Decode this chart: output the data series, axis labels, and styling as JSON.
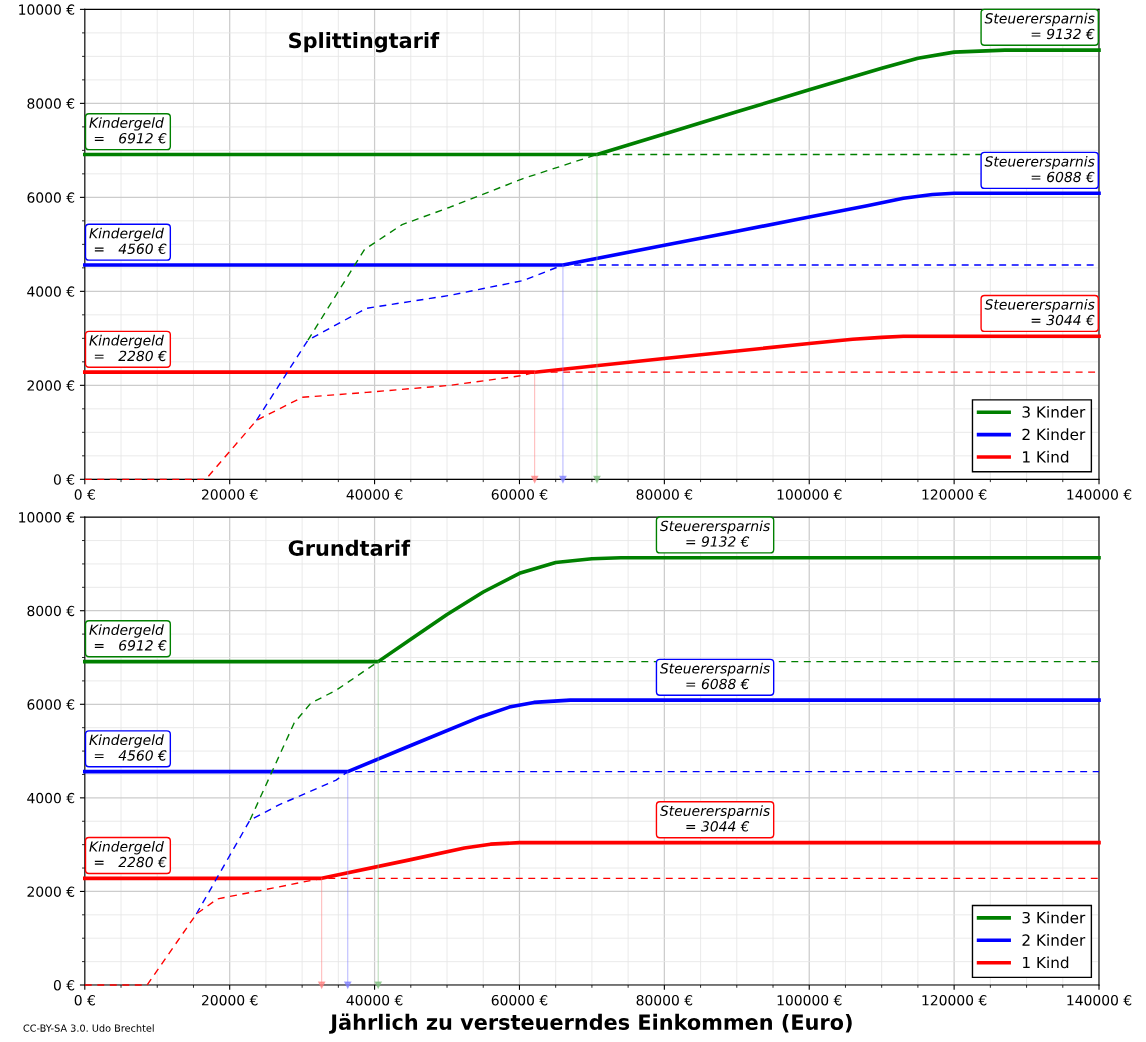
{
  "chart_data": [
    {
      "type": "line",
      "title": "Splittingtarif",
      "xlim": [
        0,
        140000
      ],
      "ylim": [
        0,
        10000
      ],
      "xticks": [
        {
          "value": 0,
          "label": "0 €"
        },
        {
          "value": 20000,
          "label": "20000 €"
        },
        {
          "value": 40000,
          "label": "40000 €"
        },
        {
          "value": 60000,
          "label": "60000 €"
        },
        {
          "value": 80000,
          "label": "80000 €"
        },
        {
          "value": 100000,
          "label": "100000 €"
        },
        {
          "value": 120000,
          "label": "120000 €"
        },
        {
          "value": 140000,
          "label": "140000 €"
        }
      ],
      "yticks": [
        {
          "value": 0,
          "label": "0 €"
        },
        {
          "value": 2000,
          "label": "2000 €"
        },
        {
          "value": 4000,
          "label": "4000 €"
        },
        {
          "value": 6000,
          "label": "6000 €"
        },
        {
          "value": 8000,
          "label": "8000 €"
        },
        {
          "value": 10000,
          "label": "10000 €"
        }
      ],
      "grid": true,
      "legend": "bottom right",
      "series": [
        {
          "name": "3 Kinder",
          "color": "#008000",
          "line_style": "solid",
          "x": [
            0,
            70700,
            80000,
            90000,
            100000,
            110000,
            115000,
            120000,
            127000,
            140000
          ],
          "values": [
            6912,
            6912,
            7350,
            7820,
            8290,
            8745,
            8960,
            9090,
            9132,
            9132
          ]
        },
        {
          "name": "2 Kinder",
          "color": "#0000ff",
          "line_style": "solid",
          "x": [
            0,
            66000,
            80000,
            90000,
            100000,
            108000,
            113000,
            117000,
            120000,
            140000
          ],
          "values": [
            4560,
            4560,
            4980,
            5280,
            5580,
            5820,
            5980,
            6060,
            6088,
            6088
          ]
        },
        {
          "name": "1 Kind",
          "color": "#ff0000",
          "line_style": "solid",
          "x": [
            0,
            62100,
            80000,
            100000,
            106000,
            110000,
            113000,
            140000
          ],
          "values": [
            2280,
            2280,
            2570,
            2890,
            2980,
            3020,
            3044,
            3044
          ]
        },
        {
          "color": "#008000",
          "line_style": "dashed",
          "x": [
            30800,
            38600,
            43800,
            50400,
            60500,
            70700,
            140000
          ],
          "values": [
            2960,
            4890,
            5420,
            5790,
            6400,
            6912,
            6912
          ]
        },
        {
          "color": "#0000ff",
          "line_style": "dashed",
          "x": [
            23700,
            30800,
            38900,
            50400,
            60500,
            66000,
            140000
          ],
          "values": [
            1255,
            2960,
            3640,
            3915,
            4230,
            4560,
            4560
          ]
        },
        {
          "color": "#ff0000",
          "line_style": "dashed",
          "x": [
            0,
            16700,
            23700,
            30000,
            38900,
            50400,
            60500,
            62100,
            140000
          ],
          "values": [
            0,
            0,
            1255,
            1745,
            1850,
            2000,
            2210,
            2280,
            2280
          ]
        },
        {
          "color": "#7fbf7f",
          "line_style": "solid",
          "marker": "triangle",
          "x": [
            70700,
            70700
          ],
          "values": [
            6912,
            0
          ]
        },
        {
          "color": "#8080ff",
          "line_style": "solid",
          "marker": "triangle",
          "x": [
            66000,
            66000
          ],
          "values": [
            4560,
            0
          ]
        },
        {
          "color": "#ff8080",
          "line_style": "solid",
          "marker": "triangle",
          "x": [
            62100,
            62100
          ],
          "values": [
            2280,
            0
          ]
        }
      ],
      "annotations": [
        {
          "text": "Kindergeld\n =   6912 €",
          "x": 0,
          "y": 6912
        },
        {
          "text": "Steuerersparnis\n = 9132 €",
          "x": 140000,
          "y": 9132
        },
        {
          "text": "Kindergeld\n =   4560 €",
          "x": 0,
          "y": 4560
        },
        {
          "text": "Steuerersparnis\n = 6088 €",
          "x": 140000,
          "y": 6088
        },
        {
          "text": "Kindergeld\n =   2280 €",
          "x": 0,
          "y": 2280
        },
        {
          "text": "Steuerersparnis\n = 3044 €",
          "x": 140000,
          "y": 3044
        }
      ]
    },
    {
      "type": "line",
      "title": "Grundtarif",
      "xlabel": "Jährlich zu versteuerndes Einkommen (Euro)",
      "xlim": [
        0,
        140000
      ],
      "ylim": [
        0,
        10000
      ],
      "xticks": [
        {
          "value": 0,
          "label": "0 €"
        },
        {
          "value": 20000,
          "label": "20000 €"
        },
        {
          "value": 40000,
          "label": "40000 €"
        },
        {
          "value": 60000,
          "label": "60000 €"
        },
        {
          "value": 80000,
          "label": "80000 €"
        },
        {
          "value": 100000,
          "label": "100000 €"
        },
        {
          "value": 120000,
          "label": "120000 €"
        },
        {
          "value": 140000,
          "label": "140000 €"
        }
      ],
      "yticks": [
        {
          "value": 0,
          "label": "0 €"
        },
        {
          "value": 2000,
          "label": "2000 €"
        },
        {
          "value": 4000,
          "label": "4000 €"
        },
        {
          "value": 6000,
          "label": "6000 €"
        },
        {
          "value": 8000,
          "label": "8000 €"
        },
        {
          "value": 10000,
          "label": "10000 €"
        }
      ],
      "grid": true,
      "legend": "bottom right",
      "series": [
        {
          "name": "3 Kinder",
          "color": "#008000",
          "line_style": "solid",
          "x": [
            0,
            40500,
            45000,
            50000,
            55000,
            60000,
            65000,
            70000,
            74000,
            140000
          ],
          "values": [
            6912,
            6912,
            7390,
            7920,
            8400,
            8800,
            9030,
            9110,
            9132,
            9132
          ]
        },
        {
          "name": "2 Kinder",
          "color": "#0000ff",
          "line_style": "solid",
          "x": [
            0,
            36300,
            45000,
            54600,
            58600,
            62000,
            67000,
            140000
          ],
          "values": [
            4560,
            4560,
            5120,
            5730,
            5940,
            6040,
            6088,
            6088
          ]
        },
        {
          "name": "1 Kind",
          "color": "#ff0000",
          "line_style": "solid",
          "x": [
            0,
            32700,
            45000,
            52400,
            56000,
            60000,
            140000
          ],
          "values": [
            2280,
            2280,
            2680,
            2930,
            3010,
            3044,
            3044
          ]
        },
        {
          "color": "#008000",
          "line_style": "dashed",
          "x": [
            22800,
            28900,
            31200,
            34700,
            40500,
            140000
          ],
          "values": [
            3525,
            5600,
            6025,
            6300,
            6912,
            6912
          ]
        },
        {
          "color": "#0000ff",
          "line_style": "dashed",
          "x": [
            15400,
            22800,
            26800,
            34700,
            36300,
            140000
          ],
          "values": [
            1517,
            3525,
            3850,
            4380,
            4560,
            4560
          ]
        },
        {
          "color": "#ff0000",
          "line_style": "dashed",
          "x": [
            0,
            8600,
            15400,
            18300,
            25900,
            32700,
            140000
          ],
          "values": [
            0,
            0,
            1517,
            1840,
            2070,
            2280,
            2280
          ]
        },
        {
          "color": "#7fbf7f",
          "line_style": "solid",
          "marker": "triangle",
          "x": [
            40500,
            40500
          ],
          "values": [
            6912,
            0
          ]
        },
        {
          "color": "#8080ff",
          "line_style": "solid",
          "marker": "triangle",
          "x": [
            36300,
            36300
          ],
          "values": [
            4560,
            0
          ]
        },
        {
          "color": "#ff8080",
          "line_style": "solid",
          "marker": "triangle",
          "x": [
            32700,
            32700
          ],
          "values": [
            2280,
            0
          ]
        }
      ],
      "annotations": [
        {
          "text": "Kindergeld\n =   6912 €",
          "x": 0,
          "y": 6912
        },
        {
          "text": "Steuerersparnis\n = 9132 €",
          "x": 87000,
          "y": 9132
        },
        {
          "text": "Kindergeld\n =   4560 €",
          "x": 0,
          "y": 4560
        },
        {
          "text": "Steuerersparnis\n = 6088 €",
          "x": 87000,
          "y": 6088
        },
        {
          "text": "Kindergeld\n =   2280 €",
          "x": 0,
          "y": 2280
        },
        {
          "text": "Steuerersparnis\n = 3044 €",
          "x": 87000,
          "y": 3044
        },
        "CC-BY-SA 3.0. Udo Brechtel"
      ]
    }
  ]
}
